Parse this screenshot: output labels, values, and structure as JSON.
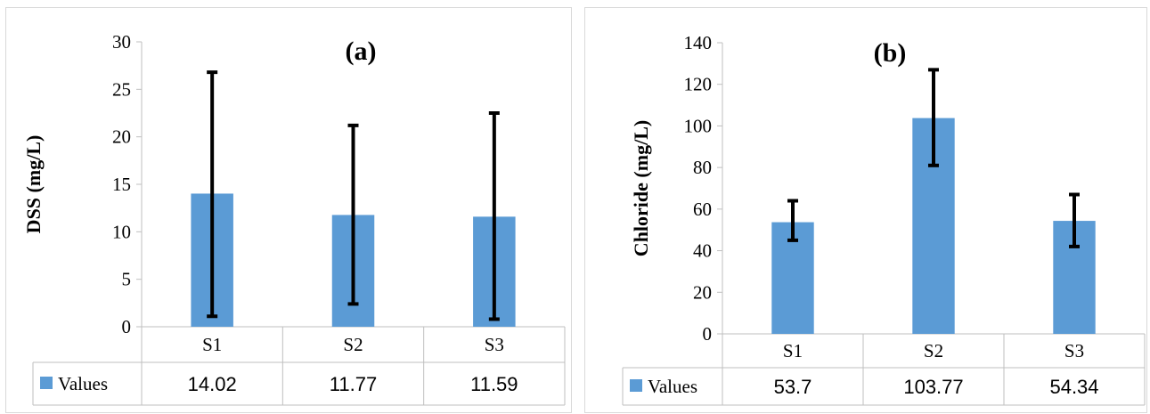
{
  "colors": {
    "bar": "#5b9bd5",
    "error_bar": "#000000",
    "axis": "#bfbfbf",
    "gridless": true
  },
  "chart_data": [
    {
      "type": "bar",
      "panel_label": "(a)",
      "title": "",
      "xlabel": "",
      "ylabel": "DSS (mg/L)",
      "ylim": [
        0,
        30
      ],
      "yticks": [
        "0",
        "5",
        "10",
        "15",
        "20",
        "25",
        "30"
      ],
      "categories": [
        "S1",
        "S2",
        "S3"
      ],
      "series": [
        {
          "name": "Values",
          "values": [
            14.02,
            11.77,
            11.59
          ],
          "value_labels": [
            "14.02",
            "11.77",
            "11.59"
          ],
          "error_low": [
            1.1,
            2.4,
            0.8
          ],
          "error_high": [
            26.8,
            21.2,
            22.5
          ]
        }
      ],
      "grid": false,
      "legend": "data-table-left"
    },
    {
      "type": "bar",
      "panel_label": "(b)",
      "title": "",
      "xlabel": "",
      "ylabel": "Chloride (mg/L)",
      "ylim": [
        0,
        140
      ],
      "yticks": [
        "0",
        "20",
        "40",
        "60",
        "80",
        "100",
        "120",
        "140"
      ],
      "categories": [
        "S1",
        "S2",
        "S3"
      ],
      "series": [
        {
          "name": "Values",
          "values": [
            53.7,
            103.77,
            54.34
          ],
          "value_labels": [
            "53.7",
            "103.77",
            "54.34"
          ],
          "error_low": [
            45,
            81,
            42
          ],
          "error_high": [
            64,
            127,
            67
          ]
        }
      ],
      "grid": false,
      "legend": "data-table-left"
    }
  ]
}
